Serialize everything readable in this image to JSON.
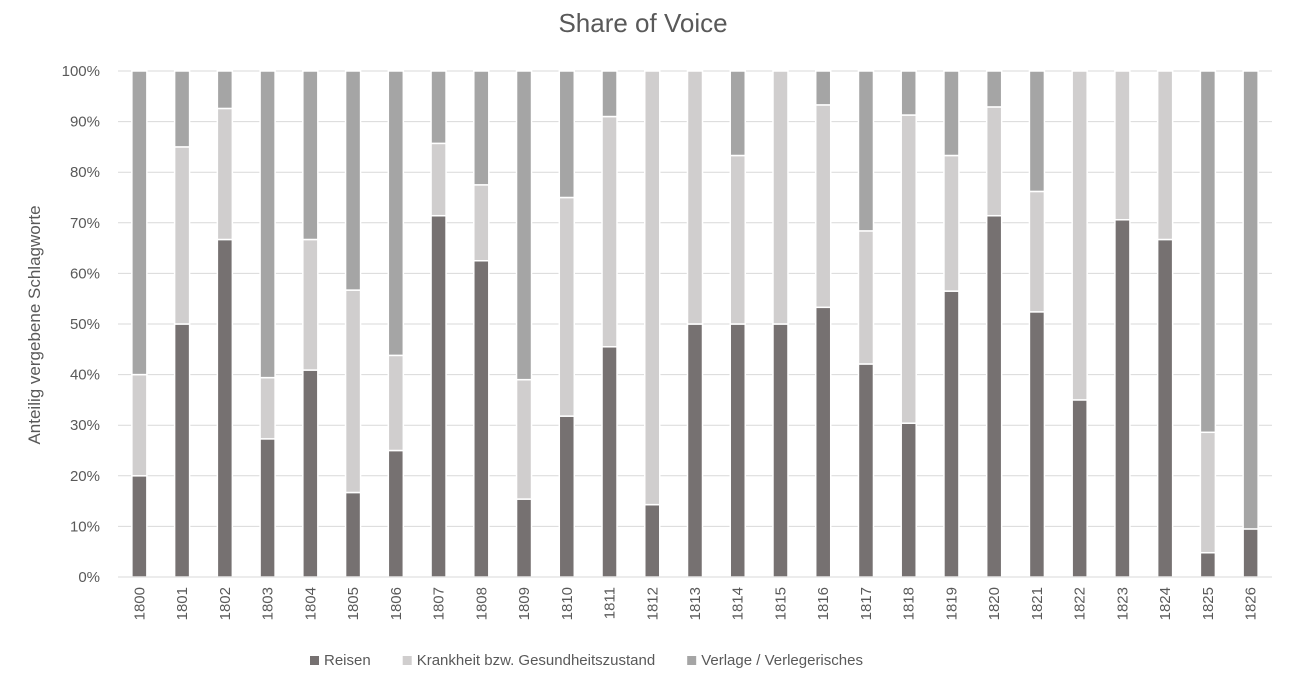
{
  "chart_data": {
    "type": "bar",
    "stacked": true,
    "title": "Share of Voice",
    "xlabel": "",
    "ylabel": "Anteilig vergebene Schlagworte",
    "ylim": [
      0,
      100
    ],
    "y_ticks": [
      "0%",
      "10%",
      "20%",
      "30%",
      "40%",
      "50%",
      "60%",
      "70%",
      "80%",
      "90%",
      "100%"
    ],
    "grid": true,
    "legend_position": "bottom",
    "categories": [
      "1800",
      "1801",
      "1802",
      "1803",
      "1804",
      "1805",
      "1806",
      "1807",
      "1808",
      "1809",
      "1810",
      "1811",
      "1812",
      "1813",
      "1814",
      "1815",
      "1816",
      "1817",
      "1818",
      "1819",
      "1820",
      "1821",
      "1822",
      "1823",
      "1824",
      "1825",
      "1826"
    ],
    "series": [
      {
        "name": "Reisen",
        "color": "#767171",
        "values": [
          20,
          50,
          66.7,
          27.3,
          40.9,
          16.7,
          25,
          71.4,
          62.5,
          15.4,
          31.8,
          45.5,
          14.3,
          50,
          50,
          50,
          53.3,
          42.1,
          30.4,
          56.5,
          71.4,
          52.4,
          35,
          70.6,
          66.7,
          4.8,
          9.5
        ]
      },
      {
        "name": "Krankheit bzw. Gesundheitszustand",
        "color": "#d0cece",
        "values": [
          20,
          35,
          25.9,
          12.1,
          25.8,
          40,
          18.8,
          14.3,
          15,
          23.6,
          43.2,
          45.5,
          85.7,
          50,
          33.3,
          50,
          40,
          26.3,
          60.9,
          26.8,
          21.5,
          23.8,
          65,
          29.4,
          33.3,
          23.8,
          0
        ]
      },
      {
        "name": "Verlage / Verlegerisches",
        "color": "#a5a5a5",
        "values": [
          60,
          15,
          7.4,
          60.6,
          33.3,
          43.3,
          56.2,
          14.3,
          22.5,
          61,
          25,
          9,
          0,
          0,
          16.7,
          0,
          6.7,
          31.6,
          8.7,
          16.7,
          7.1,
          23.8,
          0,
          0,
          0,
          71.4,
          90.5
        ]
      }
    ]
  }
}
